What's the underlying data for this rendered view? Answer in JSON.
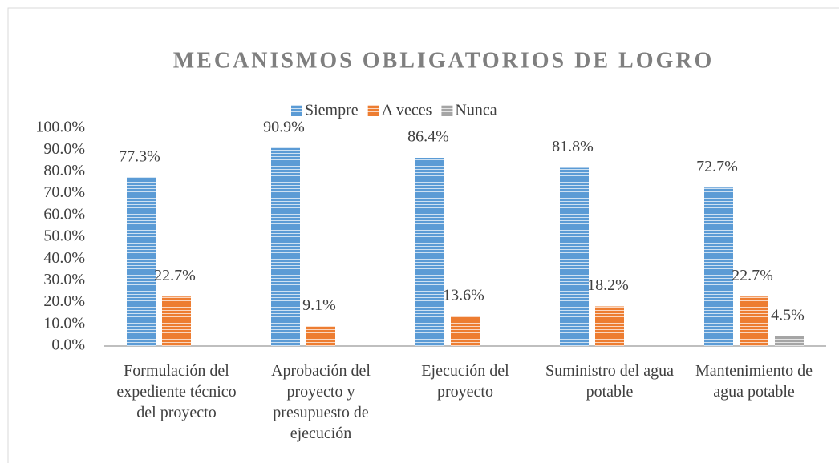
{
  "chart_data": {
    "type": "bar",
    "title": "MECANISMOS OBLIGATORIOS DE LOGRO",
    "categories": [
      "Formulación del expediente técnico del proyecto",
      "Aprobación del proyecto y presupuesto de ejecución",
      "Ejecución del proyecto",
      "Suministro del agua potable",
      "Mantenimiento de agua potable"
    ],
    "series": [
      {
        "name": "Siempre",
        "color": "#5b9bd5",
        "values": [
          77.3,
          90.9,
          86.4,
          81.8,
          72.7
        ],
        "value_labels": [
          "77.3%",
          "90.9%",
          "86.4%",
          "81.8%",
          "72.7%"
        ]
      },
      {
        "name": "A veces",
        "color": "#ed7d31",
        "values": [
          22.7,
          9.1,
          13.6,
          18.2,
          22.7
        ],
        "value_labels": [
          "22.7%",
          "9.1%",
          "13.6%",
          "18.2%",
          "22.7%"
        ]
      },
      {
        "name": "Nunca",
        "color": "#a5a5a5",
        "values": [
          null,
          null,
          null,
          null,
          4.5
        ],
        "value_labels": [
          null,
          null,
          null,
          null,
          "4.5%"
        ]
      }
    ],
    "ylim": [
      0,
      100
    ],
    "yticks": [
      {
        "value": 0,
        "label": "0.0%"
      },
      {
        "value": 10,
        "label": "10.0%"
      },
      {
        "value": 20,
        "label": "20.0%"
      },
      {
        "value": 30,
        "label": "30.0%"
      },
      {
        "value": 40,
        "label": "40.0%"
      },
      {
        "value": 50,
        "label": "50.0%"
      },
      {
        "value": 60,
        "label": "60.0%"
      },
      {
        "value": 70,
        "label": "70.0%"
      },
      {
        "value": 80,
        "label": "80.0%"
      },
      {
        "value": 90,
        "label": "90.0%"
      },
      {
        "value": 100,
        "label": "100.0%"
      }
    ],
    "grid": false,
    "legend": "top"
  }
}
